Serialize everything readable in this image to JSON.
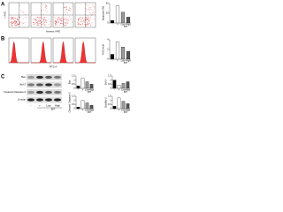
{
  "panels": {
    "a": "A",
    "b": "B",
    "c": "C"
  },
  "flow": {
    "y_label": "7-AAD",
    "x_label": "Annexin V-PE"
  },
  "histogram": {
    "x_label": "FITC-A"
  },
  "blot": {
    "rows": [
      "Bax",
      "Bcl-2",
      "Cleaved Caspase-3",
      "β-actin"
    ],
    "lanes": [
      "-",
      "+",
      "Low",
      "High"
    ],
    "group": "BIT"
  },
  "chart_data": [
    {
      "type": "bar",
      "y_label": "Apoptosis (%)",
      "categories": [
        "-",
        "+",
        "Low",
        "High"
      ],
      "group": "BIT",
      "values": [
        5,
        35,
        22,
        12
      ],
      "colors": [
        "#000000",
        "#ffffff",
        "#9a9a9a",
        "#555555"
      ],
      "ylim": [
        0,
        40
      ],
      "yticks": [
        0,
        20,
        40
      ]
    },
    {
      "type": "bar",
      "y_label": "ROS level",
      "categories": [
        "-",
        "+",
        "Low",
        "High"
      ],
      "group": "BIT",
      "values": [
        1,
        3.5,
        2.5,
        1.6
      ],
      "colors": [
        "#000000",
        "#ffffff",
        "#9a9a9a",
        "#555555"
      ],
      "ylim": [
        0,
        4
      ],
      "yticks": [
        0,
        2,
        4
      ]
    },
    {
      "type": "bar",
      "y_label": "Bax",
      "categories": [
        "-",
        "+",
        "Low",
        "High"
      ],
      "group": "BIT",
      "values": [
        0.3,
        1.2,
        0.8,
        0.5
      ],
      "colors": [
        "#000000",
        "#ffffff",
        "#9a9a9a",
        "#555555"
      ],
      "ylim": [
        0,
        1.5
      ],
      "yticks": [
        0,
        0.5,
        1,
        1.5
      ]
    },
    {
      "type": "bar",
      "y_label": "Bcl-2",
      "categories": [
        "-",
        "+",
        "Low",
        "High"
      ],
      "group": "BIT",
      "values": [
        1,
        0.4,
        0.6,
        0.8
      ],
      "colors": [
        "#000000",
        "#ffffff",
        "#9a9a9a",
        "#555555"
      ],
      "ylim": [
        0,
        1.5
      ],
      "yticks": [
        0,
        0.5,
        1,
        1.5
      ]
    },
    {
      "type": "bar",
      "y_label": "Cleaved Caspase-3",
      "categories": [
        "-",
        "+",
        "Low",
        "High"
      ],
      "group": "BIT",
      "values": [
        0.2,
        1,
        0.7,
        0.4
      ],
      "colors": [
        "#000000",
        "#ffffff",
        "#9a9a9a",
        "#555555"
      ],
      "ylim": [
        0,
        1.5
      ],
      "yticks": [
        0,
        0.5,
        1,
        1.5
      ]
    },
    {
      "type": "bar",
      "y_label": "Bax/Bcl-2",
      "categories": [
        "-",
        "+",
        "Low",
        "High"
      ],
      "group": "BIT",
      "values": [
        0.3,
        1.3,
        0.9,
        0.6
      ],
      "colors": [
        "#000000",
        "#ffffff",
        "#9a9a9a",
        "#555555"
      ],
      "ylim": [
        0,
        1.5
      ],
      "yticks": [
        0,
        0.5,
        1,
        1.5
      ]
    }
  ]
}
